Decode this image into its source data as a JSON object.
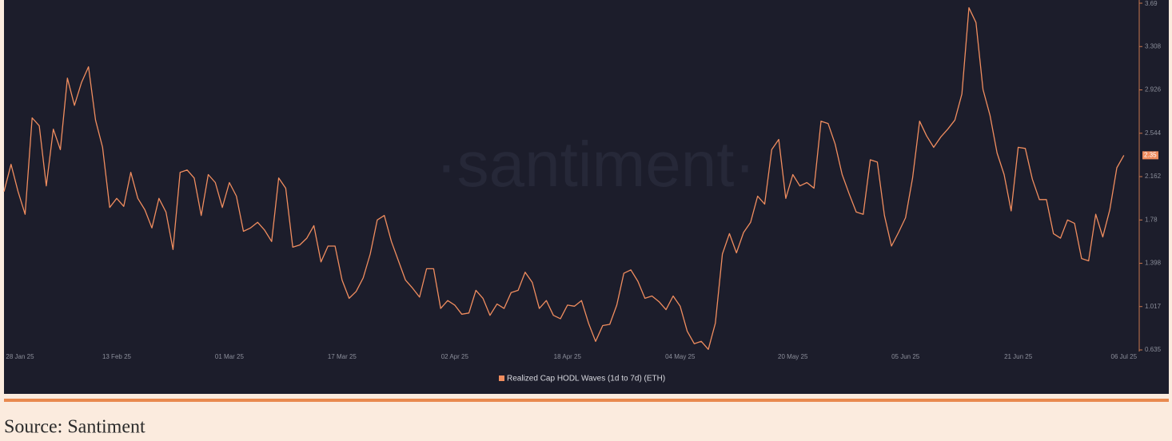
{
  "chart_data": {
    "type": "line",
    "watermark": "·santiment·",
    "source": "Source: Santiment",
    "categories": [
      "28 Jan 25",
      null,
      null,
      null,
      null,
      null,
      null,
      null,
      null,
      null,
      null,
      null,
      null,
      null,
      null,
      null,
      "13 Feb 25",
      null,
      null,
      null,
      null,
      null,
      null,
      null,
      null,
      null,
      null,
      null,
      null,
      null,
      null,
      null,
      "01 Mar 25",
      null,
      null,
      null,
      null,
      null,
      null,
      null,
      null,
      null,
      null,
      null,
      null,
      null,
      null,
      null,
      "17 Mar 25",
      null,
      null,
      null,
      null,
      null,
      null,
      null,
      null,
      null,
      null,
      null,
      null,
      null,
      null,
      null,
      "02 Apr 25",
      null,
      null,
      null,
      null,
      null,
      null,
      null,
      null,
      null,
      null,
      null,
      null,
      null,
      null,
      null,
      "18 Apr 25",
      null,
      null,
      null,
      null,
      null,
      null,
      null,
      null,
      null,
      null,
      null,
      null,
      null,
      null,
      null,
      "04 May 25",
      null,
      null,
      null,
      null,
      null,
      null,
      null,
      null,
      null,
      null,
      null,
      null,
      null,
      null,
      null,
      "20 May 25",
      null,
      null,
      null,
      null,
      null,
      null,
      null,
      null,
      null,
      null,
      null,
      null,
      null,
      null,
      null,
      "05 Jun 25",
      null,
      null,
      null,
      null,
      null,
      null,
      null,
      null,
      null,
      null,
      null,
      null,
      null,
      null,
      null,
      "21 Jun 25",
      null,
      null,
      null,
      null,
      null,
      null,
      null,
      null,
      null,
      null,
      null,
      null,
      null,
      null,
      "06 Jul 25"
    ],
    "series": [
      {
        "name": "Realized Cap HODL Waves (1d to 7d) (ETH)",
        "color": "#f08d5f",
        "values": [
          2.03,
          2.27,
          2.03,
          1.83,
          2.68,
          2.61,
          2.08,
          2.58,
          2.4,
          3.03,
          2.79,
          2.99,
          3.13,
          2.66,
          2.42,
          1.89,
          1.97,
          1.9,
          2.2,
          1.97,
          1.87,
          1.71,
          1.97,
          1.85,
          1.52,
          2.2,
          2.22,
          2.15,
          1.82,
          2.18,
          2.11,
          1.89,
          2.11,
          1.99,
          1.68,
          1.71,
          1.76,
          1.69,
          1.59,
          2.15,
          2.06,
          1.54,
          1.56,
          1.62,
          1.73,
          1.41,
          1.55,
          1.55,
          1.25,
          1.09,
          1.15,
          1.27,
          1.48,
          1.78,
          1.82,
          1.59,
          1.42,
          1.25,
          1.18,
          1.1,
          1.35,
          1.35,
          1.0,
          1.07,
          1.03,
          0.95,
          0.96,
          1.16,
          1.09,
          0.94,
          1.04,
          1.0,
          1.14,
          1.16,
          1.32,
          1.23,
          1.0,
          1.07,
          0.94,
          0.91,
          1.03,
          1.02,
          1.07,
          0.87,
          0.71,
          0.85,
          0.86,
          1.03,
          1.31,
          1.34,
          1.24,
          1.09,
          1.11,
          1.06,
          0.99,
          1.11,
          1.02,
          0.8,
          0.69,
          0.71,
          0.64,
          0.87,
          1.48,
          1.66,
          1.49,
          1.67,
          1.76,
          1.99,
          1.92,
          2.4,
          2.49,
          1.97,
          2.18,
          2.08,
          2.11,
          2.06,
          2.65,
          2.63,
          2.45,
          2.18,
          2.01,
          1.85,
          1.83,
          2.31,
          2.29,
          1.82,
          1.55,
          1.67,
          1.8,
          2.15,
          2.65,
          2.52,
          2.42,
          2.51,
          2.58,
          2.66,
          2.89,
          3.65,
          3.52,
          2.93,
          2.7,
          2.37,
          2.18,
          1.86,
          2.42,
          2.41,
          2.14,
          1.96,
          1.96,
          1.66,
          1.62,
          1.78,
          1.75,
          1.44,
          1.42,
          1.83,
          1.63,
          1.87,
          2.24,
          2.35
        ]
      }
    ],
    "ylim": [
      0.635,
      3.69
    ],
    "yticks": [
      3.69,
      3.308,
      2.926,
      2.544,
      2.162,
      1.78,
      1.398,
      1.017,
      0.635
    ],
    "grid": false
  }
}
